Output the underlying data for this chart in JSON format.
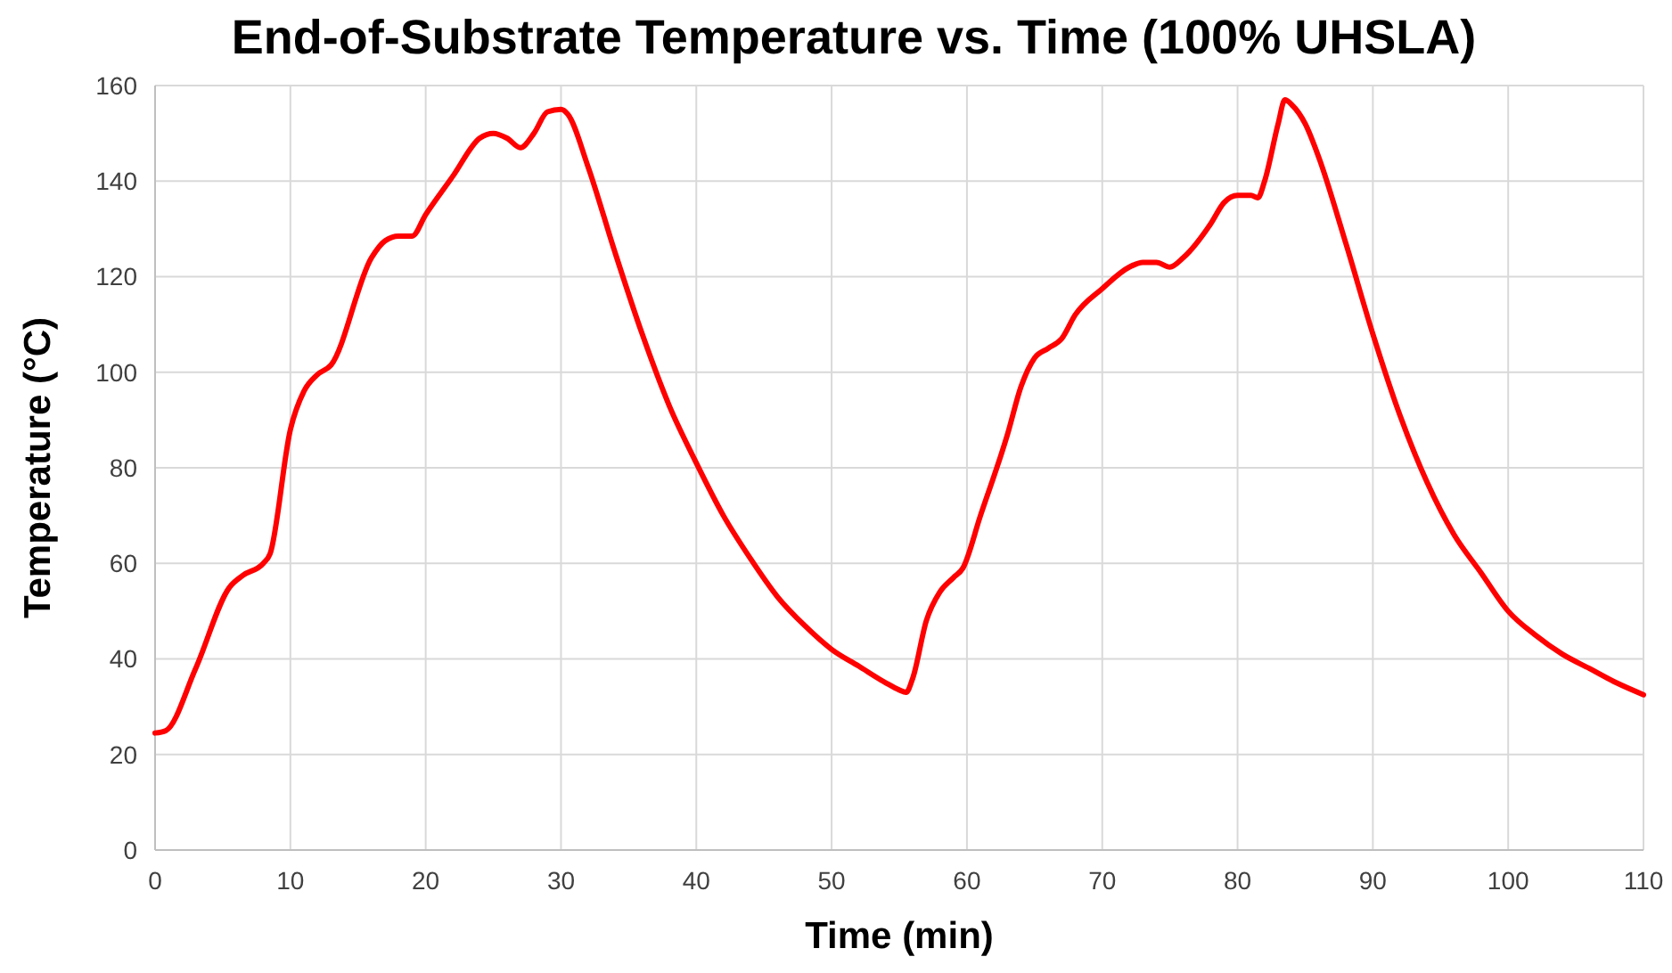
{
  "chart_data": {
    "type": "line",
    "title": "End-of-Substrate Temperature vs. Time (100% UHSLA)",
    "xlabel": "Time (min)",
    "ylabel": "Temperature (°C)",
    "xlim": [
      0,
      110
    ],
    "xticks": [
      0,
      10,
      20,
      30,
      40,
      50,
      60,
      70,
      80,
      90,
      100,
      110
    ],
    "ylim": [
      0,
      160
    ],
    "yticks": [
      0,
      20,
      40,
      60,
      80,
      100,
      120,
      140,
      160
    ],
    "grid": true,
    "marker": "none",
    "line_style": "solid",
    "series": [
      {
        "color": "#ff0000",
        "x": [
          0,
          0.8,
          3,
          5.5,
          6.5,
          8,
          8.5,
          10,
          11,
          12,
          13,
          16,
          17,
          18,
          19,
          20,
          22,
          24,
          25,
          26,
          27,
          28,
          29,
          30,
          30.5,
          32,
          34,
          36,
          38,
          40,
          42,
          44,
          46,
          48,
          50,
          52,
          54,
          55,
          55.5,
          56,
          57,
          58,
          59,
          59.7,
          61,
          63,
          64,
          65,
          66,
          67,
          68,
          70,
          72,
          73,
          74,
          75,
          76,
          78,
          79,
          80,
          81,
          81.5,
          82,
          83,
          83.5,
          84,
          85,
          86,
          88,
          90,
          92,
          94,
          96,
          98,
          100,
          102,
          104,
          106,
          108,
          110
        ],
        "values": [
          24.5,
          25,
          38,
          55,
          57.5,
          60,
          62,
          88,
          96,
          99.5,
          101.5,
          124,
          127.5,
          128.5,
          128.5,
          133,
          141,
          149,
          150,
          149,
          147,
          150,
          154.5,
          155,
          154,
          143,
          125,
          108,
          93,
          81,
          70,
          61,
          53,
          47,
          42,
          38.5,
          35,
          33.5,
          33,
          36,
          48,
          54,
          57,
          59,
          70,
          87,
          97,
          103,
          105,
          107,
          112,
          117.5,
          122,
          123,
          123,
          122,
          124,
          131,
          135.5,
          137,
          137,
          136.5,
          140,
          152,
          157,
          156,
          152,
          145,
          127,
          108,
          91,
          77,
          66,
          58,
          50,
          45,
          41,
          38,
          35,
          32.5
        ]
      }
    ]
  }
}
